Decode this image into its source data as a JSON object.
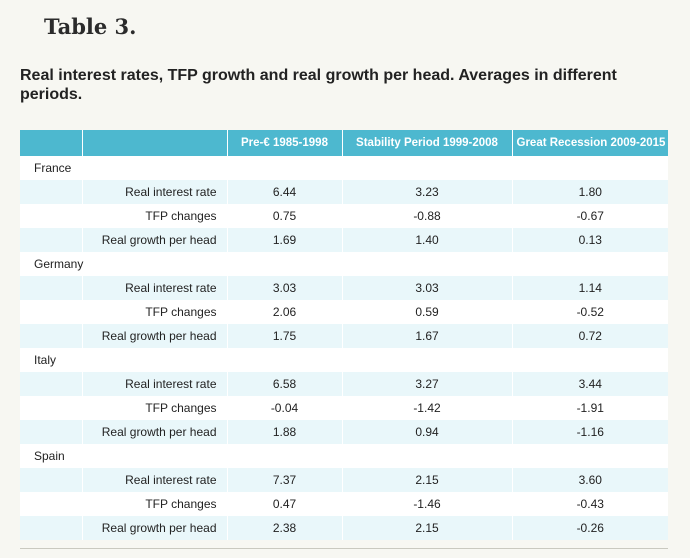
{
  "table_label": "Table 3.",
  "caption": "Real interest rates, TFP growth and real growth per head. Averages in different periods.",
  "columns": [
    "Pre-€ 1985-1998",
    "Stability Period 1999-2008",
    "Great Recession 2009-2015"
  ],
  "metric_labels": {
    "rate": "Real interest rate",
    "tfp": "TFP changes",
    "growth": "Real growth per head"
  },
  "countries": [
    {
      "name": "France",
      "rate": [
        "6.44",
        "3.23",
        "1.80"
      ],
      "tfp": [
        "0.75",
        "-0.88",
        "-0.67"
      ],
      "growth": [
        "1.69",
        "1.40",
        "0.13"
      ]
    },
    {
      "name": "Germany",
      "rate": [
        "3.03",
        "3.03",
        "1.14"
      ],
      "tfp": [
        "2.06",
        "0.59",
        "-0.52"
      ],
      "growth": [
        "1.75",
        "1.67",
        "0.72"
      ]
    },
    {
      "name": "Italy",
      "rate": [
        "6.58",
        "3.27",
        "3.44"
      ],
      "tfp": [
        "-0.04",
        "-1.42",
        "-1.91"
      ],
      "growth": [
        "1.88",
        "0.94",
        "-1.16"
      ]
    },
    {
      "name": "Spain",
      "rate": [
        "7.37",
        "2.15",
        "3.60"
      ],
      "tfp": [
        "0.47",
        "-1.46",
        "-0.43"
      ],
      "growth": [
        "2.38",
        "2.15",
        "-0.26"
      ]
    }
  ]
}
